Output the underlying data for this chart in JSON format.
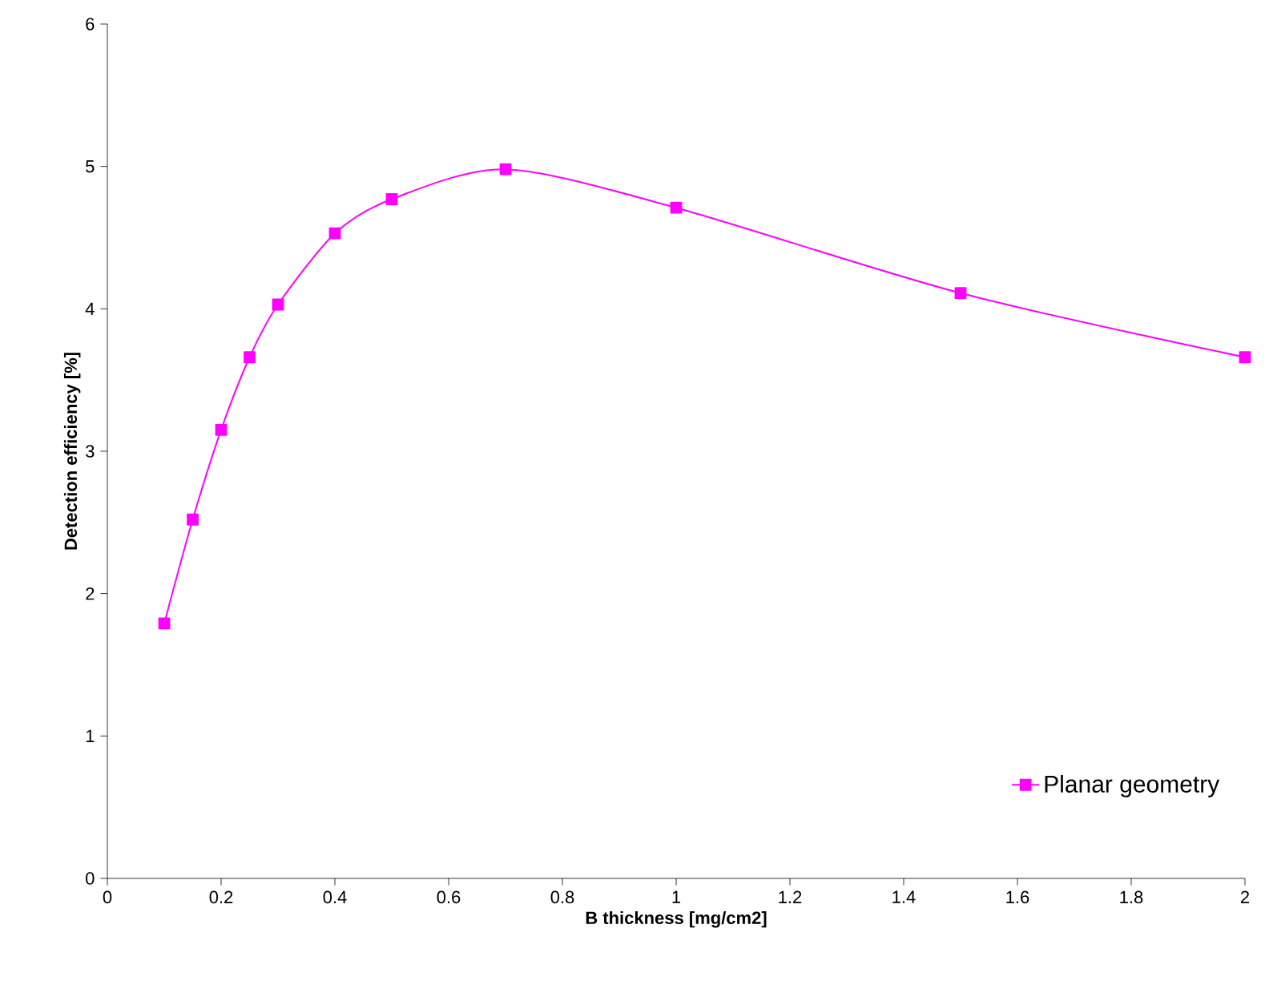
{
  "chart_data": {
    "type": "line",
    "xlabel": "B thickness [mg/cm2]",
    "ylabel": "Detection efficiency [%]",
    "x": [
      0.1,
      0.15,
      0.2,
      0.25,
      0.3,
      0.4,
      0.5,
      0.7,
      1.0,
      1.5,
      2.0
    ],
    "series": [
      {
        "name": "Planar geometry",
        "color": "#ff00ff",
        "values": [
          1.79,
          2.52,
          3.15,
          3.66,
          4.03,
          4.53,
          4.77,
          4.98,
          4.71,
          4.11,
          3.66
        ]
      }
    ],
    "xlim": [
      0,
      2
    ],
    "xticks": [
      0,
      0.2,
      0.4,
      0.6,
      0.8,
      1,
      1.2,
      1.4,
      1.6,
      1.8,
      2
    ],
    "ylim": [
      0,
      6
    ],
    "yticks": [
      0,
      1,
      2,
      3,
      4,
      5,
      6
    ],
    "marker": "square",
    "line_style": "solid",
    "legend": "bottom right",
    "grid": false
  }
}
